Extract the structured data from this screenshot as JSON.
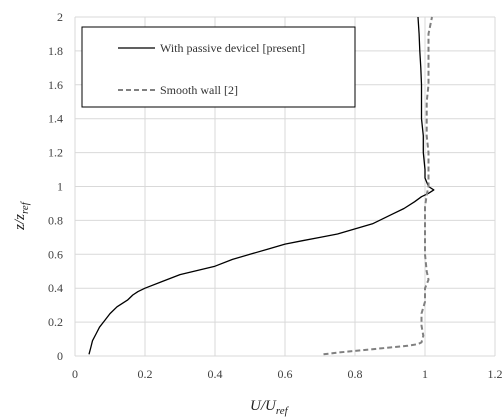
{
  "chart_data": {
    "type": "line",
    "xlabel": {
      "base": "U/U",
      "sub": "ref"
    },
    "ylabel": {
      "base": "z/z",
      "sub": "ref"
    },
    "xlim": [
      0,
      1.2
    ],
    "ylim": [
      0,
      2
    ],
    "x_ticks": [
      "0",
      "0.2",
      "0.4",
      "0.6",
      "0.8",
      "1",
      "1.2"
    ],
    "y_ticks": [
      "0",
      "0.2",
      "0.4",
      "0.6",
      "0.8",
      "1",
      "1.2",
      "1.4",
      "1.6",
      "1.8",
      "2"
    ],
    "grid": true,
    "legend_position": "top-left",
    "series": [
      {
        "name": "With passive devicel [present]",
        "style": "solid",
        "color": "#000000",
        "points": [
          [
            0.04,
            0.01
          ],
          [
            0.045,
            0.05
          ],
          [
            0.05,
            0.09
          ],
          [
            0.06,
            0.13
          ],
          [
            0.07,
            0.17
          ],
          [
            0.085,
            0.21
          ],
          [
            0.1,
            0.25
          ],
          [
            0.12,
            0.29
          ],
          [
            0.15,
            0.33
          ],
          [
            0.165,
            0.36
          ],
          [
            0.18,
            0.38
          ],
          [
            0.2,
            0.4
          ],
          [
            0.25,
            0.44
          ],
          [
            0.3,
            0.48
          ],
          [
            0.4,
            0.53
          ],
          [
            0.45,
            0.57
          ],
          [
            0.5,
            0.6
          ],
          [
            0.55,
            0.63
          ],
          [
            0.6,
            0.66
          ],
          [
            0.65,
            0.68
          ],
          [
            0.7,
            0.7
          ],
          [
            0.75,
            0.72
          ],
          [
            0.8,
            0.75
          ],
          [
            0.85,
            0.78
          ],
          [
            0.88,
            0.81
          ],
          [
            0.91,
            0.84
          ],
          [
            0.94,
            0.87
          ],
          [
            0.97,
            0.91
          ],
          [
            0.99,
            0.94
          ],
          [
            1.01,
            0.96
          ],
          [
            1.025,
            0.98
          ],
          [
            1.01,
            1.0
          ],
          [
            1.0,
            1.05
          ],
          [
            1.0,
            1.1
          ],
          [
            0.995,
            1.2
          ],
          [
            0.995,
            1.3
          ],
          [
            0.99,
            1.4
          ],
          [
            0.99,
            1.5
          ],
          [
            0.99,
            1.6
          ],
          [
            0.988,
            1.7
          ],
          [
            0.985,
            1.8
          ],
          [
            0.983,
            1.9
          ],
          [
            0.98,
            2.0
          ]
        ]
      },
      {
        "name": "Smooth wall [2]",
        "style": "dashed",
        "color": "#808080",
        "points": [
          [
            0.71,
            0.01
          ],
          [
            0.75,
            0.02
          ],
          [
            0.8,
            0.03
          ],
          [
            0.85,
            0.04
          ],
          [
            0.9,
            0.05
          ],
          [
            0.95,
            0.06
          ],
          [
            0.98,
            0.07
          ],
          [
            0.99,
            0.08
          ],
          [
            0.995,
            0.12
          ],
          [
            0.99,
            0.18
          ],
          [
            0.99,
            0.25
          ],
          [
            1.0,
            0.32
          ],
          [
            1.0,
            0.4
          ],
          [
            1.01,
            0.45
          ],
          [
            1.005,
            0.5
          ],
          [
            1.0,
            0.6
          ],
          [
            1.0,
            0.7
          ],
          [
            1.0,
            0.8
          ],
          [
            1.0,
            0.88
          ],
          [
            1.005,
            0.95
          ],
          [
            1.01,
            1.0
          ],
          [
            1.01,
            1.1
          ],
          [
            1.01,
            1.2
          ],
          [
            1.005,
            1.3
          ],
          [
            1.005,
            1.4
          ],
          [
            1.005,
            1.5
          ],
          [
            1.01,
            1.6
          ],
          [
            1.01,
            1.7
          ],
          [
            1.01,
            1.8
          ],
          [
            1.01,
            1.9
          ],
          [
            1.02,
            2.0
          ]
        ]
      }
    ]
  }
}
